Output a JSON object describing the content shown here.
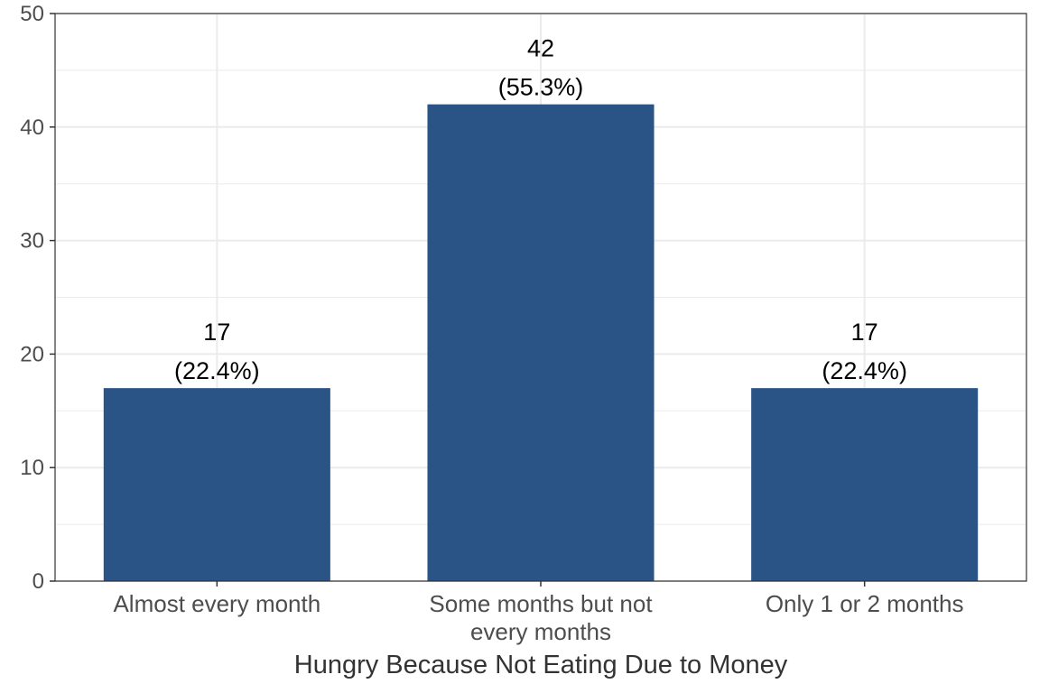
{
  "chart_data": {
    "type": "bar",
    "categories": [
      [
        "Almost every month"
      ],
      [
        "Some months but not",
        "every months"
      ],
      [
        "Only 1 or 2 months"
      ]
    ],
    "values": [
      17,
      42,
      17
    ],
    "percent_labels": [
      "(22.4%)",
      "(55.3%)",
      "(22.4%)"
    ],
    "xlabel": "Hungry Because Not Eating Due to Money",
    "ylabel": "",
    "ylim": [
      0,
      50
    ],
    "yticks": [
      0,
      10,
      20,
      30,
      40,
      50
    ],
    "grid": true,
    "colors": {
      "bar": "#2a5386",
      "grid": "#ebebeb",
      "axis": "#333333",
      "panel_border": "#333333"
    }
  }
}
